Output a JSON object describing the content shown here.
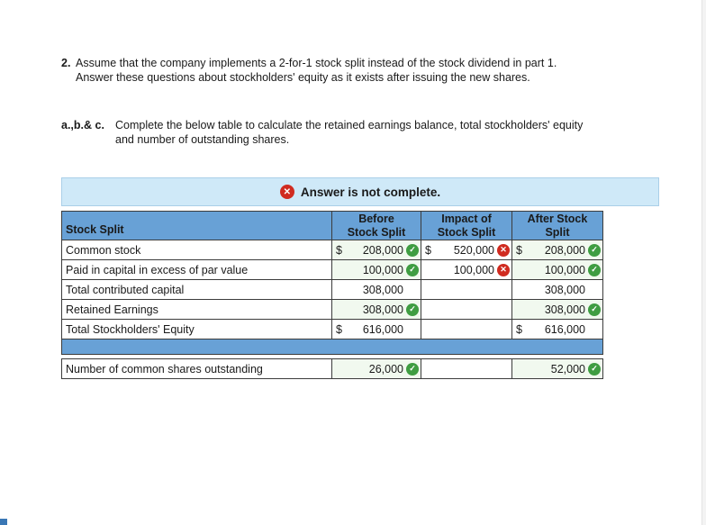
{
  "question": {
    "number": "2.",
    "text": "Assume that the company implements a 2-for-1 stock split instead of the stock dividend in part 1.\nAnswer these questions about stockholders' equity as it exists after issuing the new shares.",
    "part_label": "a.,b.& c.",
    "part_text": "Complete the below table to calculate the retained earnings balance, total stockholders' equity\nand number of outstanding shares."
  },
  "banner": {
    "icon": "incorrect-icon",
    "text": "Answer is not complete."
  },
  "colors": {
    "header_blue": "#68a1d6",
    "banner_bg": "#cfe9f8",
    "correct_green": "#3f9d42",
    "incorrect_red": "#d02b20"
  },
  "table": {
    "headers": {
      "label": "Stock Split",
      "before": "Before\nStock Split",
      "impact": "Impact of\nStock Split",
      "after": "After Stock\nSplit"
    },
    "rows": [
      {
        "label": "Common stock",
        "before": {
          "dollar": "$",
          "value": "208,000",
          "status": "correct"
        },
        "impact": {
          "dollar": "$",
          "value": "520,000",
          "status": "incorrect"
        },
        "after": {
          "dollar": "$",
          "value": "208,000",
          "status": "correct"
        }
      },
      {
        "label": "Paid in capital in excess of par value",
        "before": {
          "dollar": "",
          "value": "100,000",
          "status": "correct"
        },
        "impact": {
          "dollar": "",
          "value": "100,000",
          "status": "incorrect"
        },
        "after": {
          "dollar": "",
          "value": "100,000",
          "status": "correct"
        }
      },
      {
        "label": "Total contributed capital",
        "before": {
          "dollar": "",
          "value": "308,000",
          "status": "none"
        },
        "impact": {
          "dollar": "",
          "value": "",
          "status": "none"
        },
        "after": {
          "dollar": "",
          "value": "308,000",
          "status": "none"
        }
      },
      {
        "label": "Retained Earnings",
        "before": {
          "dollar": "",
          "value": "308,000",
          "status": "correct"
        },
        "impact": {
          "dollar": "",
          "value": "",
          "status": "none"
        },
        "after": {
          "dollar": "",
          "value": "308,000",
          "status": "correct"
        }
      },
      {
        "label": "Total Stockholders' Equity",
        "before": {
          "dollar": "$",
          "value": "616,000",
          "status": "none"
        },
        "impact": {
          "dollar": "",
          "value": "",
          "status": "none"
        },
        "after": {
          "dollar": "$",
          "value": "616,000",
          "status": "none"
        }
      }
    ],
    "shares_row": {
      "label": "Number of common shares outstanding",
      "before": {
        "dollar": "",
        "value": "26,000",
        "status": "correct"
      },
      "impact": {
        "dollar": "",
        "value": "",
        "status": "none"
      },
      "after": {
        "dollar": "",
        "value": "52,000",
        "status": "correct"
      }
    }
  }
}
